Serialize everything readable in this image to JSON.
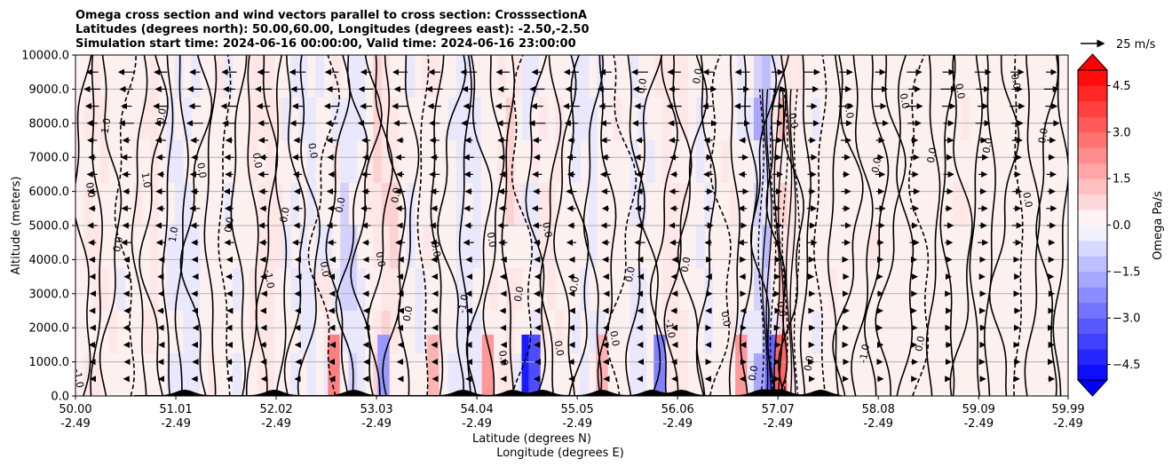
{
  "chart_data": {
    "type": "contour",
    "title_lines": [
      "Omega cross section and wind vectors parallel to cross section: CrosssectionA",
      "Latitudes (degrees north): 50.00,60.00, Longitudes (degrees east): -2.50,-2.50",
      "Simulation start time: 2024-06-16 00:00:00, Valid time: 2024-06-16 23:00:00"
    ],
    "xlabel_lines": [
      "Latitude (degrees N)",
      "Longitude (degrees E)"
    ],
    "ylabel": "Altitude (meters)",
    "x_range": [
      50.0,
      59.99
    ],
    "x_ticks": [
      {
        "lat": 50.0,
        "lat_label": "50.00",
        "lon_label": "-2.49"
      },
      {
        "lat": 51.01,
        "lat_label": "51.01",
        "lon_label": "-2.49"
      },
      {
        "lat": 52.02,
        "lat_label": "52.02",
        "lon_label": "-2.49"
      },
      {
        "lat": 53.03,
        "lat_label": "53.03",
        "lon_label": "-2.49"
      },
      {
        "lat": 54.04,
        "lat_label": "54.04",
        "lon_label": "-2.49"
      },
      {
        "lat": 55.05,
        "lat_label": "55.05",
        "lon_label": "-2.49"
      },
      {
        "lat": 56.06,
        "lat_label": "56.06",
        "lon_label": "-2.49"
      },
      {
        "lat": 57.07,
        "lat_label": "57.07",
        "lon_label": "-2.49"
      },
      {
        "lat": 58.08,
        "lat_label": "58.08",
        "lon_label": "-2.49"
      },
      {
        "lat": 59.09,
        "lat_label": "59.09",
        "lon_label": "-2.49"
      },
      {
        "lat": 59.99,
        "lat_label": "59.99",
        "lon_label": "-2.49"
      }
    ],
    "y_range": [
      0,
      10000
    ],
    "y_ticks": [
      {
        "value": 0,
        "label": "0.0"
      },
      {
        "value": 1000,
        "label": "1000.0"
      },
      {
        "value": 2000,
        "label": "2000.0"
      },
      {
        "value": 3000,
        "label": "3000.0"
      },
      {
        "value": 4000,
        "label": "4000.0"
      },
      {
        "value": 5000,
        "label": "5000.0"
      },
      {
        "value": 6000,
        "label": "6000.0"
      },
      {
        "value": 7000,
        "label": "7000.0"
      },
      {
        "value": 8000,
        "label": "8000.0"
      },
      {
        "value": 9000,
        "label": "9000.0"
      },
      {
        "value": 10000,
        "label": "10000.0"
      }
    ],
    "grid": "horizontal",
    "colorbar": {
      "label": "Omega Pa/s",
      "range": [
        -5.0,
        5.0
      ],
      "extend": "both",
      "tick_labels": [
        "4.5",
        "3.0",
        "1.5",
        "0.0",
        "−1.5",
        "−3.0",
        "−4.5"
      ],
      "tick_values": [
        4.5,
        3.0,
        1.5,
        0.0,
        -1.5,
        -3.0,
        -4.5
      ],
      "colormap": "bwr",
      "min_color": "#0000ff",
      "max_color": "#ff0000",
      "mid_color": "#ffffff"
    },
    "wind_key": {
      "label": "25 m/s",
      "speed": 25
    },
    "wind_barbs": {
      "rows_at_altitude_m": [
        500,
        1000,
        1500,
        2000,
        2500,
        3000,
        3500,
        4000,
        4500,
        5000,
        5500,
        6000,
        6500,
        7000,
        7500,
        8000,
        8500,
        9000,
        9500
      ],
      "direction_by_latitude": [
        {
          "from_lat": 50.0,
          "to_lat": 56.3,
          "direction": "westward"
        },
        {
          "from_lat": 56.3,
          "to_lat": 57.0,
          "direction": "mixed"
        },
        {
          "from_lat": 57.0,
          "to_lat": 59.99,
          "direction": "eastward"
        }
      ]
    },
    "contour_levels_labeled": [
      "0.0",
      "-1.0",
      "1.0",
      "-2.0",
      "2.0"
    ],
    "terrain_peaks_lat": [
      51.1,
      52.0,
      52.8,
      53.9,
      54.4,
      54.7,
      55.3,
      55.8,
      56.1,
      56.9,
      57.1,
      57.5
    ]
  },
  "colors": {
    "terrain": "#000000",
    "grid": "#b0b0b0",
    "contour_positive": "#000000",
    "contour_negative_dashed": "#000000"
  }
}
